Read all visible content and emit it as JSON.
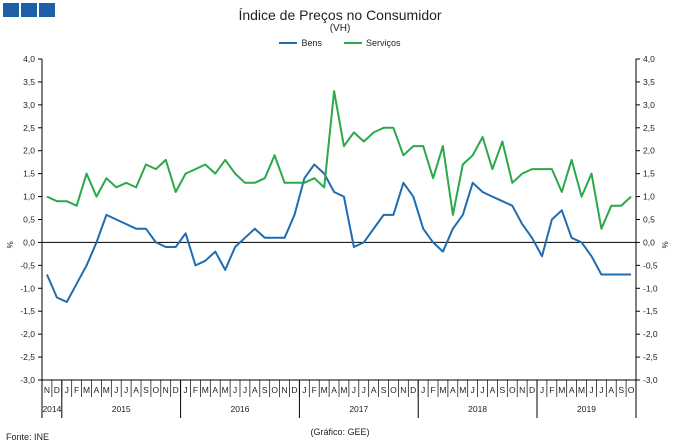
{
  "header": {
    "title": "Índice de Preços no Consumidor",
    "subtitle": "(VH)"
  },
  "legend": {
    "bens": "Bens",
    "servicos": "Serviços"
  },
  "footer": {
    "source": "Fonte: INE",
    "credit": "(Gráfico: GEE)"
  },
  "colors": {
    "bens": "#1f6cb0",
    "servicos": "#2aa84a",
    "axis": "#000000",
    "logo": "#1f5fa8"
  },
  "chart_data": {
    "type": "line",
    "title": "Índice de Preços no Consumidor",
    "subtitle": "(VH)",
    "ylabel_left": "%",
    "ylabel_right": "%",
    "ylim": [
      -3.0,
      4.0
    ],
    "yticks": [
      "-3,0",
      "-2,5",
      "-2,0",
      "-1,5",
      "-1,0",
      "-0,5",
      "0,0",
      "0,5",
      "1,0",
      "1,5",
      "2,0",
      "2,5",
      "3,0",
      "3,5",
      "4,0"
    ],
    "ytick_values": [
      -3.0,
      -2.5,
      -2.0,
      -1.5,
      -1.0,
      -0.5,
      0.0,
      0.5,
      1.0,
      1.5,
      2.0,
      2.5,
      3.0,
      3.5,
      4.0
    ],
    "month_labels": [
      "N",
      "D",
      "J",
      "F",
      "M",
      "A",
      "M",
      "J",
      "J",
      "A",
      "S",
      "O",
      "N",
      "D",
      "J",
      "F",
      "M",
      "A",
      "M",
      "J",
      "J",
      "A",
      "S",
      "O",
      "N",
      "D",
      "J",
      "F",
      "M",
      "A",
      "M",
      "J",
      "J",
      "A",
      "S",
      "O",
      "N",
      "D",
      "J",
      "F",
      "M",
      "A",
      "M",
      "J",
      "J",
      "A",
      "S",
      "O",
      "N",
      "D",
      "J",
      "F",
      "M",
      "A",
      "M",
      "J",
      "J",
      "A",
      "S",
      "O"
    ],
    "years": [
      {
        "label": "2014",
        "start": 0,
        "end": 2
      },
      {
        "label": "2015",
        "start": 2,
        "end": 14
      },
      {
        "label": "2016",
        "start": 14,
        "end": 26
      },
      {
        "label": "2017",
        "start": 26,
        "end": 38
      },
      {
        "label": "2018",
        "start": 38,
        "end": 50
      },
      {
        "label": "2019",
        "start": 50,
        "end": 60
      }
    ],
    "legend_position": "top-center",
    "grid": false,
    "series": [
      {
        "name": "Bens",
        "values": [
          -0.7,
          -1.2,
          -1.3,
          -0.9,
          -0.5,
          0.0,
          0.6,
          0.5,
          0.4,
          0.3,
          0.3,
          0.0,
          -0.1,
          -0.1,
          0.2,
          -0.5,
          -0.4,
          -0.2,
          -0.6,
          -0.1,
          0.1,
          0.3,
          0.1,
          0.1,
          0.1,
          0.6,
          1.4,
          1.7,
          1.5,
          1.1,
          1.0,
          -0.1,
          0.0,
          0.3,
          0.6,
          0.6,
          1.3,
          1.0,
          0.3,
          0.0,
          -0.2,
          0.3,
          0.6,
          1.3,
          1.1,
          1.0,
          0.9,
          0.8,
          0.4,
          0.1,
          -0.3,
          0.5,
          0.7,
          0.1,
          0.0,
          -0.3,
          -0.7,
          -0.7,
          -0.7,
          -0.7
        ]
      },
      {
        "name": "Serviços",
        "values": [
          1.0,
          0.9,
          0.9,
          0.8,
          1.5,
          1.0,
          1.4,
          1.2,
          1.3,
          1.2,
          1.7,
          1.6,
          1.8,
          1.1,
          1.5,
          1.6,
          1.7,
          1.5,
          1.8,
          1.5,
          1.3,
          1.3,
          1.4,
          1.9,
          1.3,
          1.3,
          1.3,
          1.4,
          1.2,
          3.3,
          2.1,
          2.4,
          2.2,
          2.4,
          2.5,
          2.5,
          1.9,
          2.1,
          2.1,
          1.4,
          2.1,
          0.6,
          1.7,
          1.9,
          2.3,
          1.6,
          2.2,
          1.3,
          1.5,
          1.6,
          1.6,
          1.6,
          1.1,
          1.8,
          1.0,
          1.5,
          0.3,
          0.8,
          0.8,
          1.0
        ]
      }
    ]
  }
}
